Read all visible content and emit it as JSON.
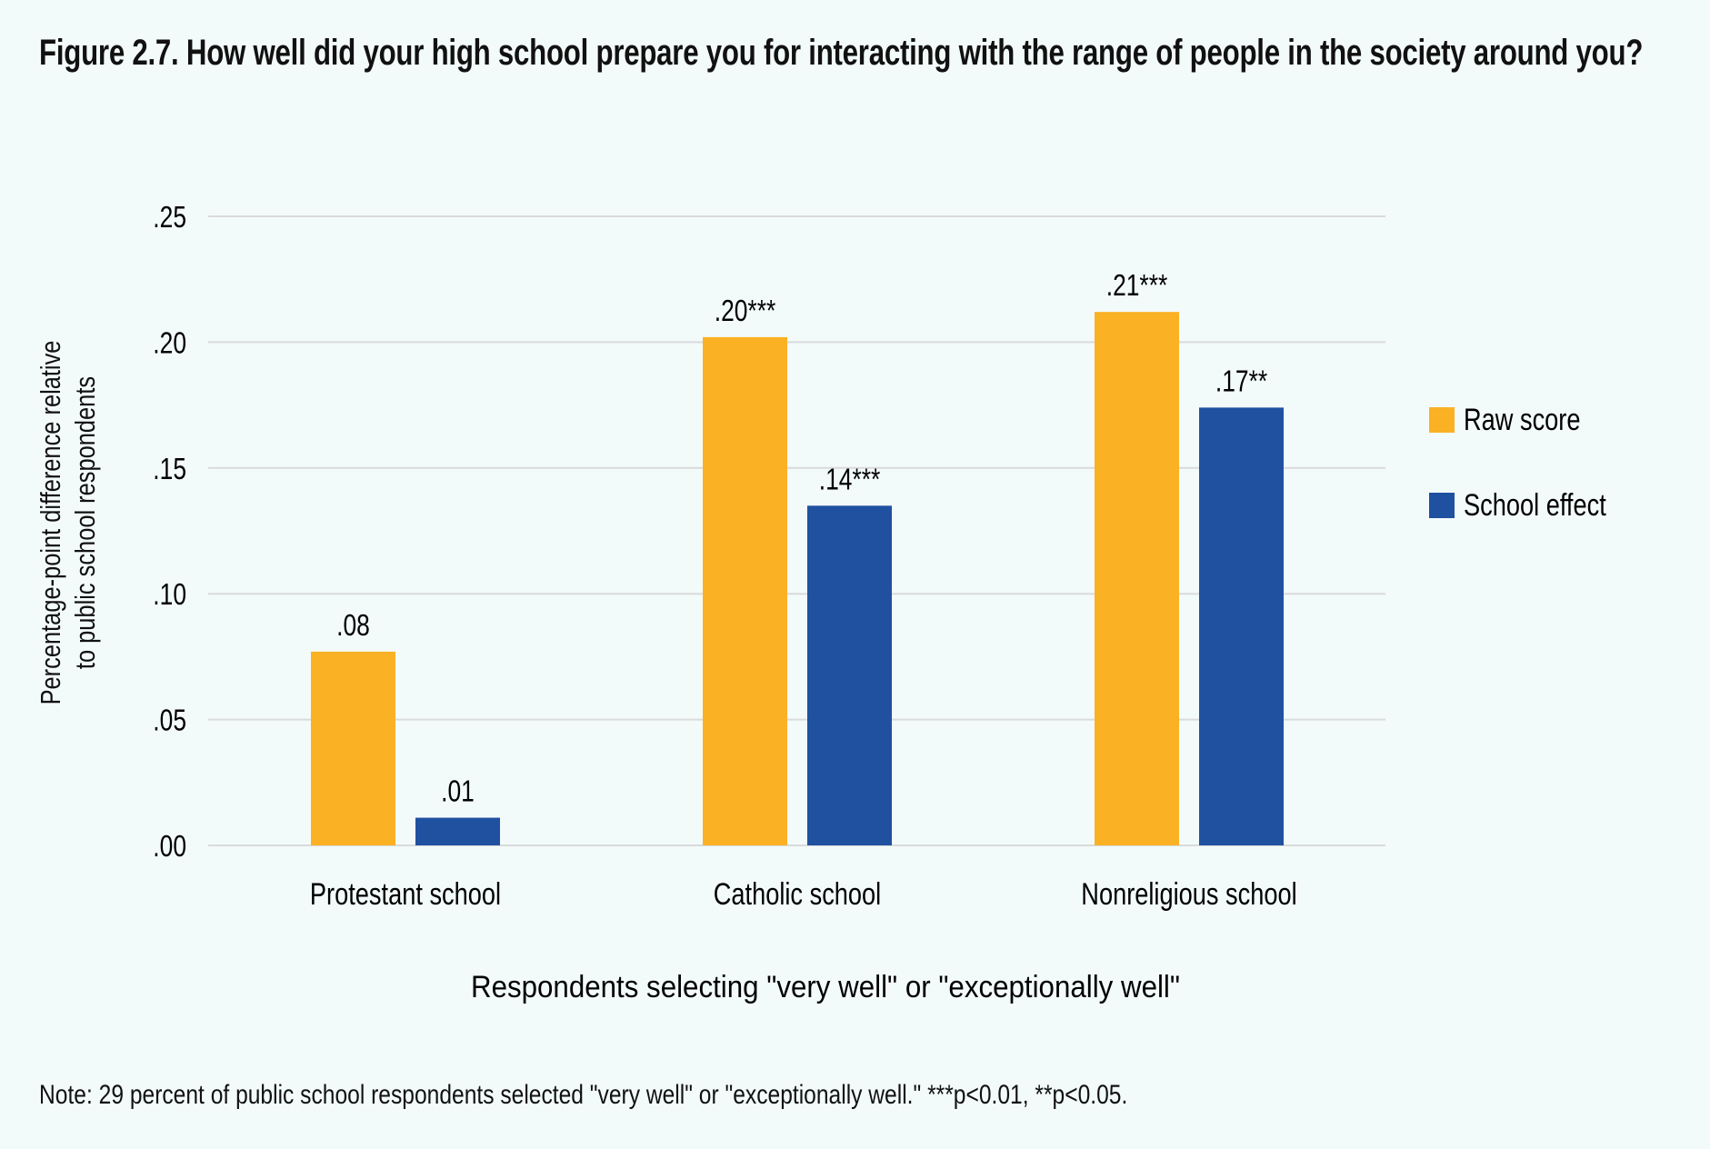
{
  "title": "Figure 2.7. How well did your high school prepare you for interacting with the range of people in the society around you?",
  "note": "Note: 29 percent of public school respondents selected \"very well\" or \"exceptionally well.\" ***p<0.01, **p<0.05.",
  "chart_data": {
    "type": "bar",
    "title": "Figure 2.7. How well did your high school prepare you for interacting with the range of people in the society around you?",
    "xlabel": "Respondents selecting \"very well\" or \"exceptionally well\"",
    "ylabel_lines": [
      "Percentage-point difference relative",
      "to public school respondents"
    ],
    "ylabel": "Percentage-point difference relative to public school respondents",
    "ylim": [
      0,
      0.25
    ],
    "yticks": [
      ".00",
      ".05",
      ".10",
      ".15",
      ".20",
      ".25"
    ],
    "ytick_values": [
      0,
      0.05,
      0.1,
      0.15,
      0.2,
      0.25
    ],
    "grid": true,
    "legend_position": "right",
    "categories": [
      "Protestant school",
      "Catholic school",
      "Nonreligious school"
    ],
    "series": [
      {
        "name": "Raw score",
        "color": "#fbb124",
        "values": [
          0.077,
          0.202,
          0.212
        ],
        "labels": [
          ".08",
          ".20***",
          ".21***"
        ]
      },
      {
        "name": "School effect",
        "color": "#1f51a0",
        "values": [
          0.011,
          0.135,
          0.174
        ],
        "labels": [
          ".01",
          ".14***",
          ".17**"
        ]
      }
    ]
  }
}
